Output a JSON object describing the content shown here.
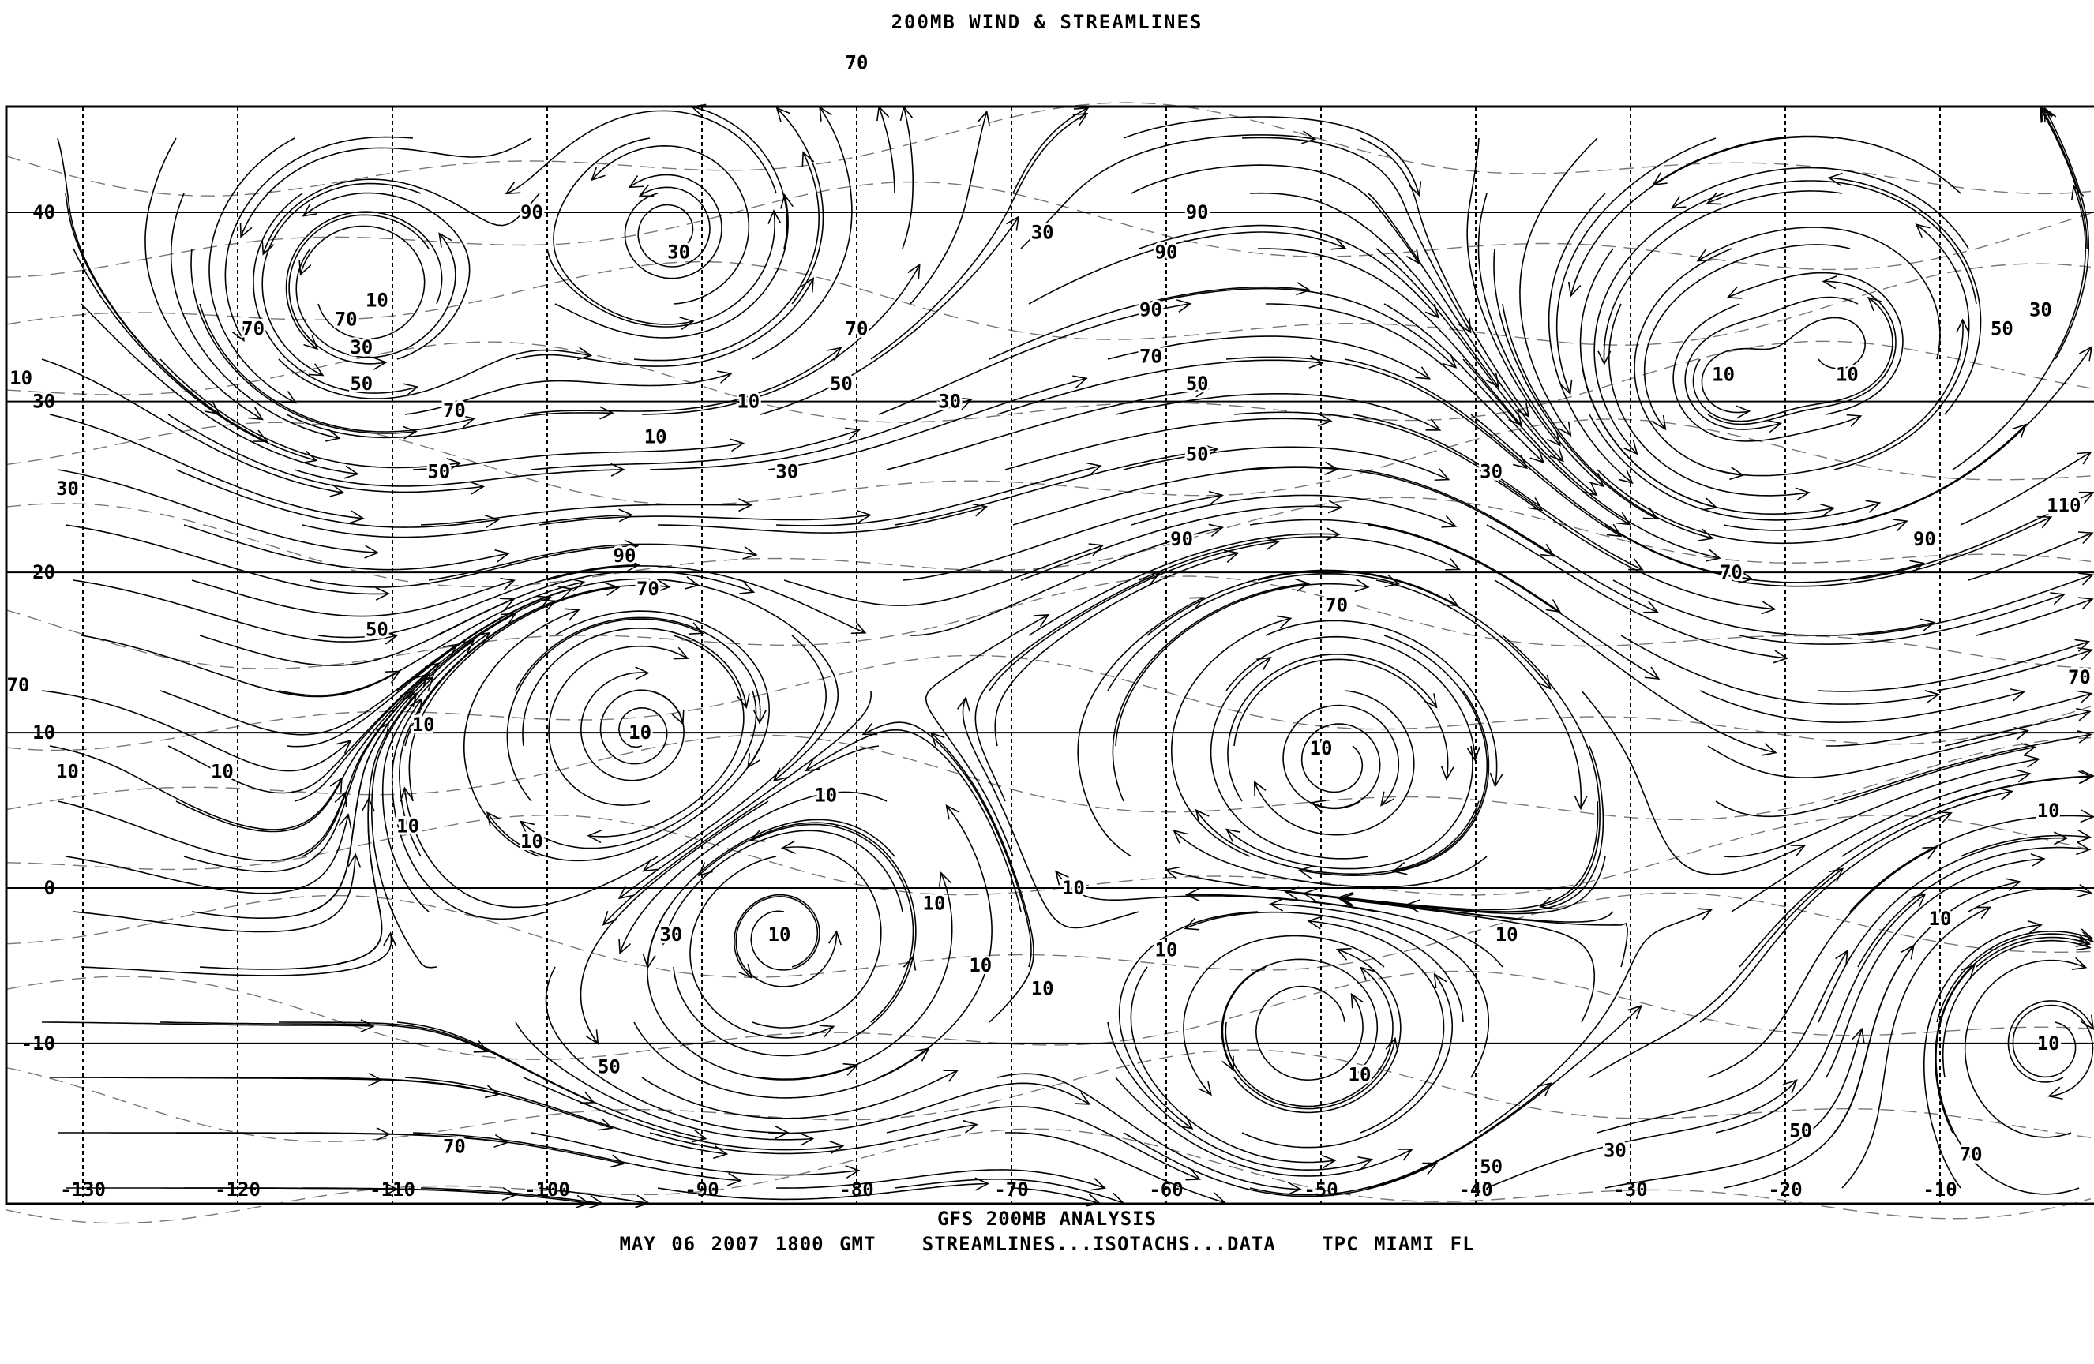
{
  "title": "200MB WIND & STREAMLINES",
  "footer": {
    "line1": "GFS 200MB ANALYSIS",
    "date": "MAY 06 2007 1800 GMT",
    "products": "STREAMLINES...ISOTACHS...DATA",
    "source": "TPC MIAMI FL"
  },
  "map": {
    "projection": "mercator",
    "lon_range": [
      -133,
      0
    ],
    "lat_range": [
      -20,
      50
    ],
    "lat_labels": [
      {
        "lat": 40,
        "text": "40"
      },
      {
        "lat": 30,
        "text": "30"
      },
      {
        "lat": 20,
        "text": "20"
      },
      {
        "lat": 10,
        "text": "10"
      },
      {
        "lat": 0,
        "text": "0"
      },
      {
        "lat": -10,
        "text": "-10"
      }
    ],
    "lon_labels": [
      -130,
      -120,
      -110,
      -100,
      -90,
      -80,
      -70,
      -60,
      -50,
      -40,
      -30,
      -20,
      -10
    ],
    "isotach_units": "kt",
    "isotach_labels": [
      {
        "v": "10",
        "lon": -111,
        "lat": 35.5
      },
      {
        "v": "30",
        "lon": -112,
        "lat": 33
      },
      {
        "v": "50",
        "lon": -112,
        "lat": 31
      },
      {
        "v": "70",
        "lon": -119,
        "lat": 34
      },
      {
        "v": "70",
        "lon": -113,
        "lat": 30
      },
      {
        "v": "70",
        "lon": -106,
        "lat": 29.5
      },
      {
        "v": "90",
        "lon": -101,
        "lat": 40
      },
      {
        "v": "30",
        "lon": -91.5,
        "lat": 38
      },
      {
        "v": "10",
        "lon": -87,
        "lat": 30
      },
      {
        "v": "10",
        "lon": -93,
        "lat": 28
      },
      {
        "v": "30",
        "lon": -84.5,
        "lat": 26
      },
      {
        "v": "70",
        "lon": -80,
        "lat": 34
      },
      {
        "v": "50",
        "lon": -81,
        "lat": 31
      },
      {
        "v": "70",
        "lon": -80,
        "lat": 47
      },
      {
        "v": "30",
        "lon": -74,
        "lat": 30
      },
      {
        "v": "30",
        "lon": -68,
        "lat": 39
      },
      {
        "v": "90",
        "lon": -58,
        "lat": 40
      },
      {
        "v": "90",
        "lon": -60,
        "lat": 38
      },
      {
        "v": "90",
        "lon": -61,
        "lat": 35
      },
      {
        "v": "70",
        "lon": -61,
        "lat": 32.5
      },
      {
        "v": "50",
        "lon": -58,
        "lat": 31
      },
      {
        "v": "50",
        "lon": -58,
        "lat": 27
      },
      {
        "v": "30",
        "lon": -39,
        "lat": 26
      },
      {
        "v": "10",
        "lon": -24,
        "lat": 31.5
      },
      {
        "v": "10",
        "lon": -16,
        "lat": 31.5
      },
      {
        "v": "30",
        "lon": -3.5,
        "lat": 35
      },
      {
        "v": "50",
        "lon": -6,
        "lat": 34
      },
      {
        "v": "110",
        "lon": -2,
        "lat": 24
      },
      {
        "v": "90",
        "lon": -11,
        "lat": 22
      },
      {
        "v": "70",
        "lon": -23.5,
        "lat": 20
      },
      {
        "v": "70",
        "lon": -49,
        "lat": 18
      },
      {
        "v": "90",
        "lon": -59,
        "lat": 22
      },
      {
        "v": "90",
        "lon": -95,
        "lat": 21
      },
      {
        "v": "70",
        "lon": -93.5,
        "lat": 19
      },
      {
        "v": "50",
        "lon": -111,
        "lat": 16.5
      },
      {
        "v": "50",
        "lon": -107,
        "lat": 26
      },
      {
        "v": "30",
        "lon": -131,
        "lat": 25
      },
      {
        "v": "10",
        "lon": -134,
        "lat": 29
      },
      {
        "v": "70",
        "lon": -134.5,
        "lat": 13
      },
      {
        "v": "10",
        "lon": -108,
        "lat": 10.5
      },
      {
        "v": "10",
        "lon": -131,
        "lat": 7.5
      },
      {
        "v": "10",
        "lon": -121,
        "lat": 7.5
      },
      {
        "v": "10",
        "lon": -94,
        "lat": 10
      },
      {
        "v": "10",
        "lon": -109,
        "lat": 4
      },
      {
        "v": "10",
        "lon": -101,
        "lat": 3
      },
      {
        "v": "10",
        "lon": -82,
        "lat": 6
      },
      {
        "v": "10",
        "lon": -85,
        "lat": -3
      },
      {
        "v": "30",
        "lon": -92,
        "lat": -3
      },
      {
        "v": "10",
        "lon": -75,
        "lat": -1
      },
      {
        "v": "10",
        "lon": -72,
        "lat": -5
      },
      {
        "v": "10",
        "lon": -66,
        "lat": 0
      },
      {
        "v": "10",
        "lon": -68,
        "lat": -6.5
      },
      {
        "v": "10",
        "lon": -60,
        "lat": -4
      },
      {
        "v": "10",
        "lon": -50,
        "lat": 9
      },
      {
        "v": "10",
        "lon": -38,
        "lat": -3
      },
      {
        "v": "10",
        "lon": -47.5,
        "lat": -12
      },
      {
        "v": "50",
        "lon": -96,
        "lat": -11.5
      },
      {
        "v": "70",
        "lon": -106,
        "lat": -16.5
      },
      {
        "v": "30",
        "lon": -31,
        "lat": -18
      },
      {
        "v": "50",
        "lon": -39,
        "lat": -19
      },
      {
        "v": "50",
        "lon": -19,
        "lat": -15.5
      },
      {
        "v": "70",
        "lon": -8,
        "lat": -19.5
      },
      {
        "v": "10",
        "lon": -3,
        "lat": -10
      },
      {
        "v": "10",
        "lon": -10,
        "lat": -2
      },
      {
        "v": "10",
        "lon": -3,
        "lat": 5
      },
      {
        "v": "70",
        "lon": -1,
        "lat": 13.5
      }
    ],
    "circulation_centers": [
      {
        "type": "cyclonic",
        "lon": -112,
        "lat": 36
      },
      {
        "type": "cyclonic",
        "lon": -92,
        "lat": 39
      },
      {
        "type": "anticyclonic",
        "lon": -94,
        "lat": 10
      },
      {
        "type": "cyclonic",
        "lon": -85,
        "lat": -3
      },
      {
        "type": "anticyclonic",
        "lon": -49,
        "lat": 8
      },
      {
        "type": "cyclonic",
        "lon": -51,
        "lat": -9
      },
      {
        "type": "cyclonic",
        "lon": -24,
        "lat": 31
      },
      {
        "type": "cyclonic",
        "lon": -16,
        "lat": 33
      },
      {
        "type": "anticyclonic",
        "lon": -3,
        "lat": -10
      }
    ]
  }
}
